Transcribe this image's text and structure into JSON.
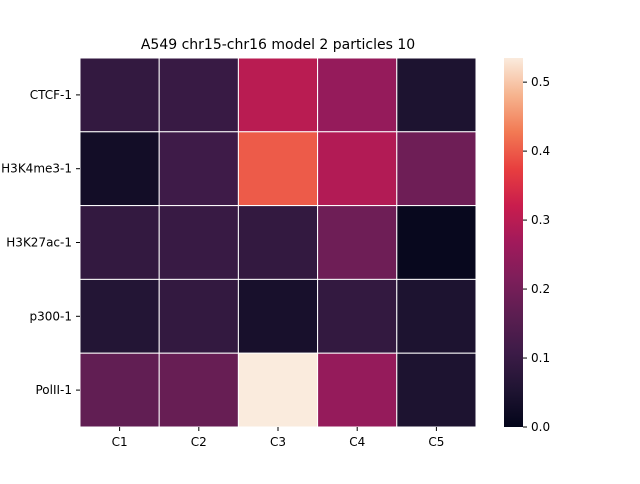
{
  "chart_data": {
    "type": "heatmap",
    "title": "A549 chr15-chr16 model 2 particles 10",
    "xlabel": "",
    "ylabel": "",
    "columns": [
      "C1",
      "C2",
      "C3",
      "C4",
      "C5"
    ],
    "rows": [
      "CTCF-1",
      "H3K4me3-1",
      "H3K27ac-1",
      "p300-1",
      "PolII-1"
    ],
    "values": [
      [
        0.09,
        0.1,
        0.3,
        0.25,
        0.05
      ],
      [
        0.03,
        0.11,
        0.4,
        0.29,
        0.19
      ],
      [
        0.09,
        0.1,
        0.09,
        0.19,
        0.01
      ],
      [
        0.06,
        0.09,
        0.04,
        0.09,
        0.05
      ],
      [
        0.17,
        0.18,
        0.54,
        0.25,
        0.05
      ]
    ],
    "colorbar": {
      "vmin": 0.0,
      "vmax": 0.535,
      "ticks": [
        "0.0",
        "0.1",
        "0.2",
        "0.3",
        "0.4",
        "0.5"
      ]
    },
    "grid": true,
    "colormap": "rocket"
  }
}
